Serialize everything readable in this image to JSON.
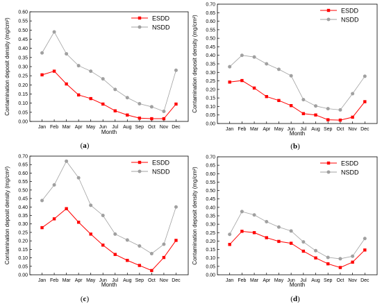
{
  "colors": {
    "esdd": "#ff0000",
    "nsdd": "#a0a0a0",
    "axis": "#000000"
  },
  "chart_data": [
    {
      "type": "line",
      "panel_label": [
        "(",
        "a",
        ")"
      ],
      "xlabel": "Month",
      "ylabel": "Contamination deposit density (mg/cm²)",
      "categories": [
        "Jan",
        "Feb",
        "Mar",
        "Apr",
        "May",
        "Jun",
        "Jul",
        "Aug",
        "Sep",
        "Oct",
        "Nov",
        "Dec"
      ],
      "ylim": [
        0,
        0.6
      ],
      "yticks": [
        "0.00",
        "0.05",
        "0.10",
        "0.15",
        "0.20",
        "0.25",
        "0.30",
        "0.35",
        "0.40",
        "0.45",
        "0.50",
        "0.55",
        "0.60"
      ],
      "legend_position": "top-right",
      "grid": false,
      "series": [
        {
          "name": "ESDD",
          "values": [
            0.255,
            0.275,
            0.205,
            0.145,
            0.125,
            0.095,
            0.058,
            0.035,
            0.018,
            0.015,
            0.015,
            0.095
          ]
        },
        {
          "name": "NSDD",
          "values": [
            0.375,
            0.49,
            0.37,
            0.305,
            0.275,
            0.233,
            0.175,
            0.13,
            0.097,
            0.08,
            0.055,
            0.28
          ]
        }
      ]
    },
    {
      "type": "line",
      "panel_label": [
        "(",
        "b",
        ")"
      ],
      "xlabel": "Month",
      "ylabel": "Contamination deposit density (mg/cm²)",
      "categories": [
        "Jan",
        "Feb",
        "Mar",
        "Apr",
        "May",
        "Jun",
        "Jul",
        "Aug",
        "Sep",
        "Oct",
        "Nov",
        "Dec"
      ],
      "ylim": [
        0,
        0.7
      ],
      "yticks": [
        "0.00",
        "0.05",
        "0.10",
        "0.15",
        "0.20",
        "0.25",
        "0.30",
        "0.35",
        "0.40",
        "0.45",
        "0.50",
        "0.55",
        "0.60",
        "0.65",
        "0.70"
      ],
      "legend_position": "top-right",
      "grid": false,
      "series": [
        {
          "name": "ESDD",
          "values": [
            0.243,
            0.252,
            0.208,
            0.158,
            0.135,
            0.105,
            0.058,
            0.05,
            0.022,
            0.02,
            0.037,
            0.128
          ]
        },
        {
          "name": "NSDD",
          "values": [
            0.333,
            0.4,
            0.39,
            0.35,
            0.318,
            0.28,
            0.14,
            0.103,
            0.087,
            0.08,
            0.175,
            0.277
          ]
        }
      ]
    },
    {
      "type": "line",
      "panel_label": [
        "(",
        "c",
        ")"
      ],
      "xlabel": "Month",
      "ylabel": "Contamination deposit density (mg/cm²)",
      "categories": [
        "Jan",
        "Feb",
        "Mar",
        "Apr",
        "May",
        "Jun",
        "Jul",
        "Aug",
        "Sep",
        "Oct",
        "Nov",
        "Dec"
      ],
      "ylim": [
        0,
        0.7
      ],
      "yticks": [
        "0.00",
        "0.05",
        "0.10",
        "0.15",
        "0.20",
        "0.25",
        "0.30",
        "0.35",
        "0.40",
        "0.45",
        "0.50",
        "0.55",
        "0.60",
        "0.65",
        "0.70"
      ],
      "legend_position": "top-right",
      "grid": false,
      "series": [
        {
          "name": "ESDD",
          "values": [
            0.278,
            0.33,
            0.39,
            0.31,
            0.24,
            0.175,
            0.12,
            0.085,
            0.055,
            0.025,
            0.102,
            0.203
          ]
        },
        {
          "name": "NSDD",
          "values": [
            0.438,
            0.53,
            0.67,
            0.572,
            0.41,
            0.35,
            0.24,
            0.205,
            0.17,
            0.125,
            0.18,
            0.4
          ]
        }
      ]
    },
    {
      "type": "line",
      "panel_label": [
        "(",
        "d",
        ")"
      ],
      "xlabel": "Month",
      "ylabel": "Contamination deposit density (mg/cm²)",
      "categories": [
        "Jan",
        "Feb",
        "Mar",
        "Apr",
        "May",
        "Jun",
        "Jul",
        "Aug",
        "Sep",
        "Oct",
        "Nov",
        "Dec"
      ],
      "ylim": [
        0,
        0.7
      ],
      "yticks": [
        "0.00",
        "0.05",
        "0.10",
        "0.15",
        "0.20",
        "0.25",
        "0.30",
        "0.35",
        "0.40",
        "0.45",
        "0.50",
        "0.55",
        "0.60",
        "0.65",
        "0.70"
      ],
      "legend_position": "top-right",
      "grid": false,
      "series": [
        {
          "name": "ESDD",
          "values": [
            0.18,
            0.258,
            0.25,
            0.22,
            0.198,
            0.187,
            0.14,
            0.1,
            0.065,
            0.043,
            0.075,
            0.147
          ]
        },
        {
          "name": "NSDD",
          "values": [
            0.24,
            0.375,
            0.355,
            0.315,
            0.283,
            0.26,
            0.195,
            0.143,
            0.103,
            0.095,
            0.11,
            0.215
          ]
        }
      ]
    }
  ]
}
